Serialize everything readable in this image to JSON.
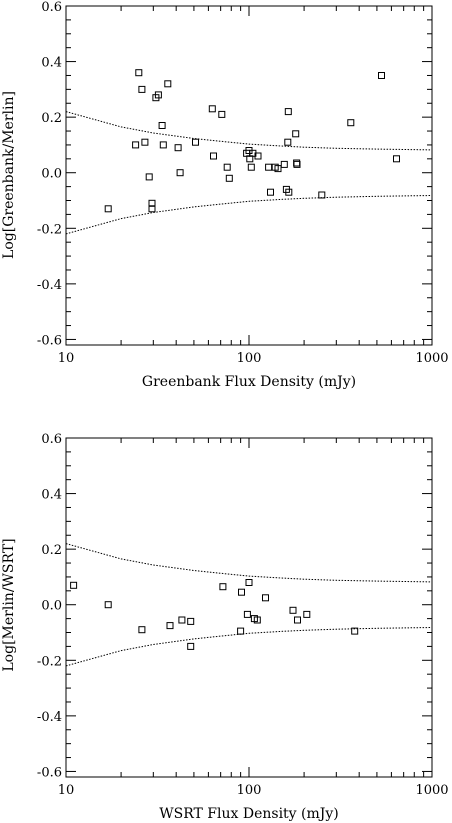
{
  "chart_data": [
    {
      "type": "scatter",
      "xlabel": "Greenbank Flux Density (mJy)",
      "ylabel": "Log[Greenbank/Merlin]",
      "xscale": "log",
      "xlim": [
        10,
        1000
      ],
      "ylim": [
        -0.62,
        0.6
      ],
      "x_ticks": [
        10,
        100,
        1000
      ],
      "x_tick_labels": [
        "10",
        "100",
        "1000"
      ],
      "y_ticks": [
        -0.6,
        -0.4,
        -0.2,
        0.0,
        0.2,
        0.4,
        0.6
      ],
      "y_tick_labels": [
        "-0.6",
        "-0.4",
        "-0.2",
        "0.0",
        "0.2",
        "0.4",
        "0.6"
      ],
      "grid": false,
      "marker": "open-square",
      "points": [
        [
          17,
          -0.13
        ],
        [
          24,
          0.1
        ],
        [
          25,
          0.36
        ],
        [
          26,
          0.3
        ],
        [
          27,
          0.11
        ],
        [
          28.5,
          -0.015
        ],
        [
          29.5,
          -0.11
        ],
        [
          29.5,
          -0.13
        ],
        [
          31,
          0.27
        ],
        [
          32,
          0.28
        ],
        [
          33.5,
          0.17
        ],
        [
          34,
          0.1
        ],
        [
          36,
          0.32
        ],
        [
          41,
          0.09
        ],
        [
          42,
          0.0
        ],
        [
          51,
          0.11
        ],
        [
          63,
          0.23
        ],
        [
          64,
          0.06
        ],
        [
          71,
          0.21
        ],
        [
          76,
          0.02
        ],
        [
          78,
          -0.02
        ],
        [
          97,
          0.07
        ],
        [
          100,
          0.08
        ],
        [
          101,
          0.05
        ],
        [
          103,
          0.02
        ],
        [
          105,
          0.07
        ],
        [
          112,
          0.06
        ],
        [
          128,
          0.02
        ],
        [
          131,
          -0.07
        ],
        [
          139,
          0.02
        ],
        [
          144,
          0.015
        ],
        [
          156,
          0.03
        ],
        [
          160,
          -0.06
        ],
        [
          163,
          0.11
        ],
        [
          164,
          0.22
        ],
        [
          165,
          -0.07
        ],
        [
          180,
          0.14
        ],
        [
          182,
          0.035
        ],
        [
          183,
          0.03
        ],
        [
          250,
          -0.08
        ],
        [
          360,
          0.18
        ],
        [
          530,
          0.35
        ],
        [
          640,
          0.05
        ]
      ],
      "envelope": {
        "upper": [
          [
            10,
            0.22
          ],
          [
            20,
            0.165
          ],
          [
            30,
            0.143
          ],
          [
            50,
            0.123
          ],
          [
            70,
            0.113
          ],
          [
            100,
            0.103
          ],
          [
            150,
            0.096
          ],
          [
            200,
            0.092
          ],
          [
            300,
            0.088
          ],
          [
            500,
            0.085
          ],
          [
            1000,
            0.082
          ]
        ],
        "lower": [
          [
            10,
            -0.22
          ],
          [
            20,
            -0.165
          ],
          [
            30,
            -0.143
          ],
          [
            50,
            -0.123
          ],
          [
            70,
            -0.113
          ],
          [
            100,
            -0.103
          ],
          [
            150,
            -0.096
          ],
          [
            200,
            -0.092
          ],
          [
            300,
            -0.088
          ],
          [
            500,
            -0.085
          ],
          [
            1000,
            -0.082
          ]
        ]
      }
    },
    {
      "type": "scatter",
      "xlabel": "WSRT Flux Density (mJy)",
      "ylabel": "Log[Merlin/WSRT]",
      "xscale": "log",
      "xlim": [
        10,
        1000
      ],
      "ylim": [
        -0.62,
        0.6
      ],
      "x_ticks": [
        10,
        100,
        1000
      ],
      "x_tick_labels": [
        "10",
        "100",
        "1000"
      ],
      "y_ticks": [
        -0.6,
        -0.4,
        -0.2,
        0.0,
        0.2,
        0.4,
        0.6
      ],
      "y_tick_labels": [
        "-0.6",
        "-0.4",
        "-0.2",
        "0.0",
        "0.2",
        "0.4",
        "0.6"
      ],
      "grid": false,
      "marker": "open-square",
      "points": [
        [
          11,
          0.07
        ],
        [
          17,
          0.0
        ],
        [
          26,
          -0.09
        ],
        [
          37,
          -0.075
        ],
        [
          43,
          -0.055
        ],
        [
          48,
          -0.06
        ],
        [
          48,
          -0.15
        ],
        [
          72,
          0.065
        ],
        [
          90,
          -0.095
        ],
        [
          91,
          0.045
        ],
        [
          98,
          -0.035
        ],
        [
          100,
          0.08
        ],
        [
          107,
          -0.05
        ],
        [
          111,
          -0.055
        ],
        [
          123,
          0.025
        ],
        [
          174,
          -0.02
        ],
        [
          184,
          -0.055
        ],
        [
          207,
          -0.035
        ],
        [
          378,
          -0.095
        ]
      ],
      "envelope": {
        "upper": [
          [
            10,
            0.22
          ],
          [
            20,
            0.165
          ],
          [
            30,
            0.143
          ],
          [
            50,
            0.123
          ],
          [
            70,
            0.113
          ],
          [
            100,
            0.103
          ],
          [
            150,
            0.096
          ],
          [
            200,
            0.092
          ],
          [
            300,
            0.088
          ],
          [
            500,
            0.085
          ],
          [
            1000,
            0.082
          ]
        ],
        "lower": [
          [
            10,
            -0.22
          ],
          [
            20,
            -0.165
          ],
          [
            30,
            -0.143
          ],
          [
            50,
            -0.123
          ],
          [
            70,
            -0.113
          ],
          [
            100,
            -0.103
          ],
          [
            150,
            -0.096
          ],
          [
            200,
            -0.092
          ],
          [
            300,
            -0.088
          ],
          [
            500,
            -0.085
          ],
          [
            1000,
            -0.082
          ]
        ]
      }
    }
  ]
}
